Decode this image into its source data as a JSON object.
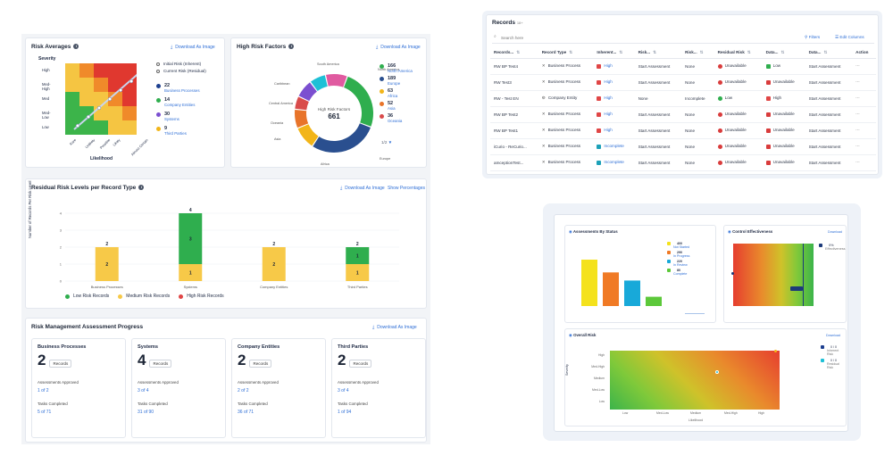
{
  "risk_averages": {
    "title": "Risk Averages",
    "download": "Download As Image",
    "y_label": "Severity",
    "x_label": "Likelihood",
    "y_ticks": [
      "High",
      "Med-High",
      "Med",
      "Med-Low",
      "Low"
    ],
    "x_ticks": [
      "Rare",
      "Unlikely",
      "Possible",
      "Likely",
      "Almost Certain"
    ],
    "legend": [
      "Initial Risk (Inherent)",
      "Current Risk (Residual)"
    ],
    "counts": [
      {
        "value": "22",
        "label": "Business Processes",
        "color": "#1d3f8f"
      },
      {
        "value": "14",
        "label": "Company Entities",
        "color": "#2fae4e"
      },
      {
        "value": "30",
        "label": "Systems",
        "color": "#7b4fd0"
      },
      {
        "value": "9",
        "label": "Third Parties",
        "color": "#f2b519"
      }
    ]
  },
  "high_risk_factors": {
    "title": "High Risk Factors",
    "download": "Download As Image",
    "center_label": "High Risk Factors",
    "center_value": "661",
    "slice_labels": [
      "South America",
      "North America",
      "Europe",
      "Africa",
      "Asia",
      "Oceania",
      "Central America",
      "Caribbean"
    ],
    "legend": [
      {
        "value": "166",
        "label": "North America",
        "color": "#2fae4e"
      },
      {
        "value": "189",
        "label": "Europe",
        "color": "#2a4f8f"
      },
      {
        "value": "63",
        "label": "Africa",
        "color": "#f2b519"
      },
      {
        "value": "52",
        "label": "Asia",
        "color": "#e8742a"
      },
      {
        "value": "36",
        "label": "Oceania",
        "color": "#d94b4b"
      }
    ],
    "pager": "1/2"
  },
  "residual_risk": {
    "title": "Residual Risk Levels per Record Type",
    "download": "Download As Image",
    "show_pct": "Show Percentages",
    "y_axis": "Number of Records Per Risk Level",
    "legend": [
      "Low Risk Records",
      "Medium Risk Records",
      "High Risk Records"
    ],
    "colors": {
      "low": "#2fae4e",
      "medium": "#f7c948",
      "high": "#e04646"
    }
  },
  "chart_data": [
    {
      "type": "bar",
      "title": "Residual Risk Levels per Record Type",
      "ylabel": "Number of Records Per Risk Level",
      "categories": [
        "Business Processes",
        "Systems",
        "Company Entities",
        "Third Parties"
      ],
      "ylim": [
        0,
        4
      ],
      "yticks": [
        "0",
        "1",
        "2",
        "3",
        "4"
      ],
      "series": [
        {
          "name": "Low Risk Records",
          "values": [
            0,
            3,
            0,
            1
          ]
        },
        {
          "name": "Medium Risk Records",
          "values": [
            2,
            1,
            2,
            1
          ]
        },
        {
          "name": "High Risk Records",
          "values": [
            0,
            0,
            0,
            0
          ]
        }
      ],
      "totals": [
        "2",
        "4",
        "2",
        "2"
      ],
      "segment_labels": [
        [
          "",
          "2"
        ],
        [
          "3",
          "1"
        ],
        [
          "",
          "2"
        ],
        [
          "1",
          "1"
        ]
      ]
    },
    {
      "type": "pie",
      "title": "High Risk Factors",
      "categories": [
        "North America",
        "Europe",
        "Africa",
        "Asia",
        "Oceania",
        "Central America",
        "Caribbean",
        "South America"
      ],
      "values": [
        166,
        189,
        63,
        52,
        36,
        50,
        45,
        60
      ]
    },
    {
      "type": "bar",
      "title": "Assessments By Status",
      "categories": [
        "Not Started",
        "In Progress",
        "In Review",
        "Complete"
      ],
      "values": [
        400,
        290,
        220,
        80
      ]
    }
  ],
  "progress": {
    "title": "Risk Management Assessment Progress",
    "download": "Download As Image",
    "cards": [
      {
        "name": "Business Processes",
        "count": "2",
        "unit": "Records",
        "approved_label": "Assessments Approved",
        "approved": "1 of 2",
        "tasks_label": "Tasks Completed",
        "tasks": "5 of 71"
      },
      {
        "name": "Systems",
        "count": "4",
        "unit": "Records",
        "approved_label": "Assessments Approved",
        "approved": "3 of 4",
        "tasks_label": "Tasks Completed",
        "tasks": "31 of 90"
      },
      {
        "name": "Company Entities",
        "count": "2",
        "unit": "Records",
        "approved_label": "Assessments Approved",
        "approved": "2 of 2",
        "tasks_label": "Tasks Completed",
        "tasks": "36 of 71"
      },
      {
        "name": "Third Parties",
        "count": "2",
        "unit": "Records",
        "approved_label": "Assessments Approved",
        "approved": "3 of 4",
        "tasks_label": "Tasks Completed",
        "tasks": "1 of 94"
      }
    ]
  },
  "records": {
    "title": "Records",
    "count": "18+",
    "search_placeholder": "Search here",
    "filters": "Filters",
    "edit_columns": "Edit Columns",
    "columns": [
      "Records...",
      "Record Type",
      "Inherent...",
      "Risk...",
      "Risk...",
      "Residual Risk",
      "Data...",
      "Data...",
      "Action"
    ],
    "rows": [
      {
        "name": "RW BP Test4",
        "type": "Business Process",
        "inherent": "High",
        "inh_color": "#e04646",
        "risk1": "Start Assessment",
        "risk2": "None",
        "residual": "Unavailable",
        "res_color": "#d93c3c",
        "data1": "Low",
        "d1_color": "#2fae4e",
        "data2": "Start Assessment"
      },
      {
        "name": "RW Test3",
        "type": "Business Process",
        "inherent": "High",
        "inh_color": "#e04646",
        "risk1": "Start Assessment",
        "risk2": "None",
        "residual": "Unavailable",
        "res_color": "#d93c3c",
        "data1": "Unavailable",
        "d1_color": "#d93c3c",
        "data2": "Start Assessment"
      },
      {
        "name": "RW - Test EN",
        "type": "Company Entity",
        "inherent": "High",
        "inh_color": "#e04646",
        "risk1": "None",
        "risk2": "Incomplete",
        "residual": "Low",
        "res_color": "#2fae4e",
        "data1": "High",
        "d1_color": "#e04646",
        "data2": "Start Assessment"
      },
      {
        "name": "RW BP Test2",
        "type": "Business Process",
        "inherent": "High",
        "inh_color": "#e04646",
        "risk1": "Start Assessment",
        "risk2": "None",
        "residual": "Unavailable",
        "res_color": "#d93c3c",
        "data1": "Unavailable",
        "d1_color": "#d93c3c",
        "data2": "Start Assessment"
      },
      {
        "name": "RW BP Test1",
        "type": "Business Process",
        "inherent": "High",
        "inh_color": "#e04646",
        "risk1": "Start Assessment",
        "risk2": "None",
        "residual": "Unavailable",
        "res_color": "#d93c3c",
        "data1": "Unavailable",
        "d1_color": "#d93c3c",
        "data2": "Start Assessment"
      },
      {
        "name": "iCurio - ReCurio...",
        "type": "Business Process",
        "inherent": "Incomplete",
        "inh_color": "#1da1b8",
        "risk1": "Start Assessment",
        "risk2": "None",
        "residual": "Unavailable",
        "res_color": "#d93c3c",
        "data1": "Unavailable",
        "d1_color": "#d93c3c",
        "data2": "Start Assessment"
      },
      {
        "name": "aInceptionTest...",
        "type": "Business Process",
        "inherent": "Incomplete",
        "inh_color": "#1da1b8",
        "risk1": "Start Assessment",
        "risk2": "None",
        "residual": "Unavailable",
        "res_color": "#d93c3c",
        "data1": "Unavailable",
        "d1_color": "#d93c3c",
        "data2": "Start Assessment"
      }
    ]
  },
  "assessments_status": {
    "title": "Assessments By Status",
    "legend": [
      {
        "value": "400",
        "label": "Not Started",
        "color": "#f4e21c"
      },
      {
        "value": "290",
        "label": "In Progress",
        "color": "#f07a25"
      },
      {
        "value": "220",
        "label": "In Review",
        "color": "#18a9d9"
      },
      {
        "value": "80",
        "label": "Complete",
        "color": "#5cc83a"
      }
    ]
  },
  "control_effectiveness": {
    "title": "Control Effectiveness",
    "download": "Download",
    "legend_value": "0%",
    "legend_label": "Effectiveness"
  },
  "overall_risk": {
    "title": "Overall Risk",
    "download": "Download",
    "y_label": "Severity",
    "x_label": "Likelihood",
    "y_ticks": [
      "High",
      "Med-High",
      "Medium",
      "Med-Low",
      "Low"
    ],
    "x_ticks": [
      "Low",
      "Med-Low",
      "Medium",
      "Med-High",
      "High"
    ],
    "legend": [
      {
        "value": "0 / 0",
        "label": "Inherent Risk",
        "color": "#1d3f8f"
      },
      {
        "value": "0 / 0",
        "label": "Residual Risk",
        "color": "#1ec0d6"
      }
    ]
  }
}
